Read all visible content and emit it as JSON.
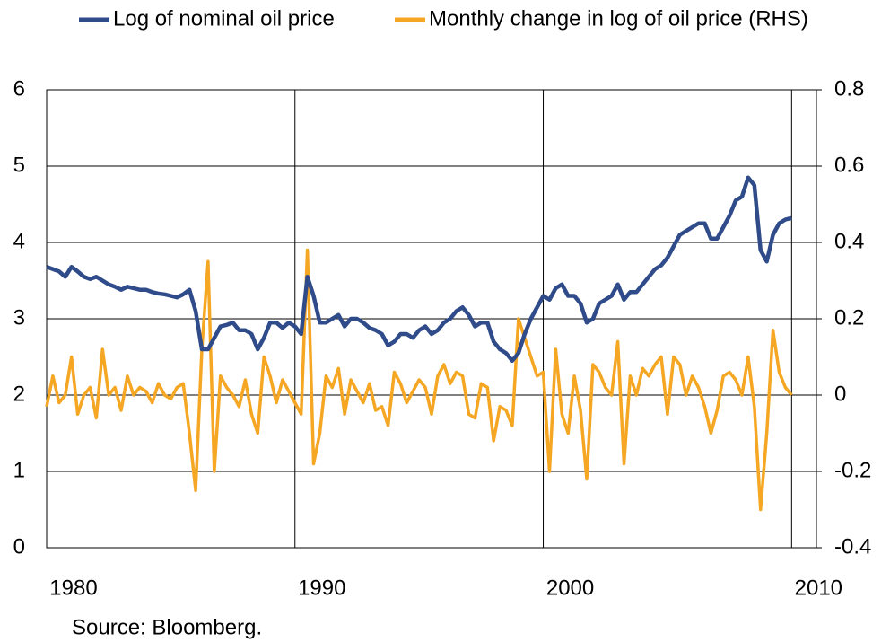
{
  "chart_data": {
    "type": "line",
    "source": "Source: Bloomberg.",
    "x": [
      1980,
      1980.25,
      1980.5,
      1980.75,
      1981,
      1981.25,
      1981.5,
      1981.75,
      1982,
      1982.25,
      1982.5,
      1982.75,
      1983,
      1983.25,
      1983.5,
      1983.75,
      1984,
      1984.25,
      1984.5,
      1984.75,
      1985,
      1985.25,
      1985.5,
      1985.75,
      1986,
      1986.25,
      1986.5,
      1986.75,
      1987,
      1987.25,
      1987.5,
      1987.75,
      1988,
      1988.25,
      1988.5,
      1988.75,
      1989,
      1989.25,
      1989.5,
      1989.75,
      1990,
      1990.25,
      1990.5,
      1990.75,
      1991,
      1991.25,
      1991.5,
      1991.75,
      1992,
      1992.25,
      1992.5,
      1992.75,
      1993,
      1993.25,
      1993.5,
      1993.75,
      1994,
      1994.25,
      1994.5,
      1994.75,
      1995,
      1995.25,
      1995.5,
      1995.75,
      1996,
      1996.25,
      1996.5,
      1996.75,
      1997,
      1997.25,
      1997.5,
      1997.75,
      1998,
      1998.25,
      1998.5,
      1998.75,
      1999,
      1999.25,
      1999.5,
      1999.75,
      2000,
      2000.25,
      2000.5,
      2000.75,
      2001,
      2001.25,
      2001.5,
      2001.75,
      2002,
      2002.25,
      2002.5,
      2002.75,
      2003,
      2003.25,
      2003.5,
      2003.75,
      2004,
      2004.25,
      2004.5,
      2004.75,
      2005,
      2005.25,
      2005.5,
      2005.75,
      2006,
      2006.25,
      2006.5,
      2006.75,
      2007,
      2007.25,
      2007.5,
      2007.75,
      2008,
      2008.25,
      2008.5,
      2008.75,
      2009,
      2009.25,
      2009.5,
      2009.75,
      2010
    ],
    "series": [
      {
        "name": "Log of nominal oil price",
        "color": "#2f4b8a",
        "values": [
          3.68,
          3.65,
          3.62,
          3.55,
          3.68,
          3.62,
          3.55,
          3.52,
          3.55,
          3.5,
          3.45,
          3.42,
          3.38,
          3.42,
          3.4,
          3.38,
          3.38,
          3.35,
          3.33,
          3.32,
          3.3,
          3.28,
          3.32,
          3.38,
          3.1,
          2.6,
          2.6,
          2.75,
          2.9,
          2.92,
          2.95,
          2.85,
          2.85,
          2.8,
          2.6,
          2.75,
          2.95,
          2.95,
          2.88,
          2.95,
          2.9,
          2.8,
          3.55,
          3.3,
          2.95,
          2.95,
          3.0,
          3.05,
          2.9,
          3.0,
          3.0,
          2.95,
          2.88,
          2.85,
          2.8,
          2.65,
          2.7,
          2.8,
          2.8,
          2.75,
          2.85,
          2.9,
          2.8,
          2.85,
          2.95,
          3.0,
          3.1,
          3.15,
          3.05,
          2.9,
          2.95,
          2.95,
          2.7,
          2.6,
          2.55,
          2.45,
          2.55,
          2.8,
          3.0,
          3.15,
          3.3,
          3.25,
          3.4,
          3.45,
          3.3,
          3.3,
          3.2,
          2.95,
          3.0,
          3.2,
          3.25,
          3.3,
          3.45,
          3.25,
          3.35,
          3.35,
          3.45,
          3.55,
          3.65,
          3.7,
          3.8,
          3.95,
          4.1,
          4.15,
          4.2,
          4.25,
          4.25,
          4.05,
          4.05,
          4.2,
          4.35,
          4.55,
          4.6,
          4.85,
          4.75,
          3.9,
          3.75,
          4.1,
          4.25,
          4.3,
          4.32
        ]
      },
      {
        "name": "Monthly change in log of oil price (RHS)",
        "color": "#f5a623",
        "axis": "y2",
        "values": [
          -0.03,
          0.05,
          -0.02,
          0.0,
          0.1,
          -0.05,
          0.0,
          0.02,
          -0.06,
          0.12,
          0.0,
          0.02,
          -0.04,
          0.05,
          0.0,
          0.02,
          0.01,
          -0.02,
          0.03,
          0.0,
          -0.01,
          0.02,
          0.03,
          -0.1,
          -0.25,
          0.12,
          0.35,
          -0.2,
          0.05,
          0.02,
          0.0,
          -0.03,
          0.04,
          -0.05,
          -0.1,
          0.1,
          0.05,
          -0.02,
          0.04,
          0.01,
          -0.02,
          -0.05,
          0.38,
          -0.18,
          -0.1,
          0.05,
          0.02,
          0.07,
          -0.05,
          0.04,
          0.01,
          -0.02,
          0.03,
          -0.04,
          -0.03,
          -0.08,
          0.06,
          0.03,
          -0.02,
          0.01,
          0.04,
          0.02,
          -0.05,
          0.05,
          0.08,
          0.03,
          0.06,
          0.05,
          -0.05,
          -0.06,
          0.03,
          0.02,
          -0.12,
          -0.03,
          -0.04,
          -0.08,
          0.2,
          0.15,
          0.1,
          0.05,
          0.06,
          -0.2,
          0.12,
          -0.05,
          -0.1,
          0.05,
          -0.04,
          -0.22,
          0.08,
          0.06,
          0.02,
          0.0,
          0.14,
          -0.18,
          0.05,
          0.0,
          0.07,
          0.05,
          0.08,
          0.1,
          -0.05,
          0.1,
          0.08,
          0.0,
          0.05,
          0.02,
          -0.03,
          -0.1,
          -0.04,
          0.05,
          0.06,
          0.04,
          0.0,
          0.1,
          -0.03,
          -0.3,
          -0.1,
          0.17,
          0.06,
          0.02,
          0.0
        ]
      }
    ],
    "xlim": [
      1980,
      2011
    ],
    "xticks": [
      1980,
      1990,
      2000,
      2010
    ],
    "ylim": [
      0,
      6
    ],
    "yticks": [
      0,
      1,
      2,
      3,
      4,
      5,
      6
    ],
    "y2lim": [
      -0.4,
      0.8
    ],
    "y2ticks": [
      -0.4,
      -0.2,
      0,
      0.2,
      0.4,
      0.6,
      0.8
    ],
    "grid": true,
    "legend": "top"
  }
}
